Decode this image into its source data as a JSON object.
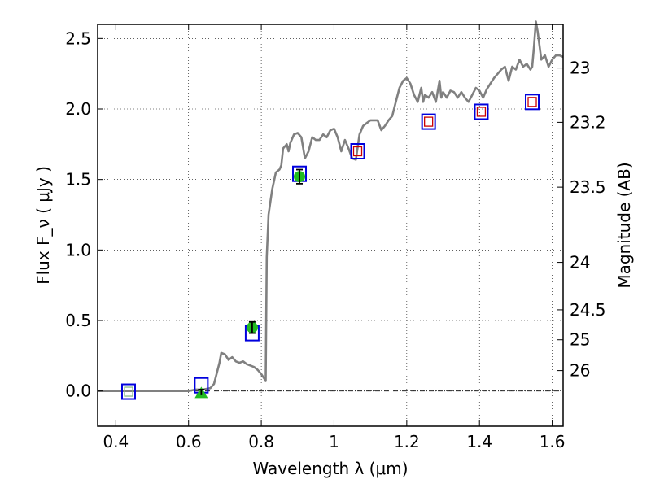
{
  "chart_data": {
    "type": "scatter",
    "xlabel": "Wavelength  λ (μm)",
    "ylabel": "Flux  F_ν  ( μJy )",
    "ylabel_right": "Magnitude (AB)",
    "xlim": [
      0.35,
      1.63
    ],
    "ylim": [
      -0.25,
      2.6
    ],
    "grid": true,
    "x_ticks": [
      0.4,
      0.6,
      0.8,
      1.0,
      1.2,
      1.4,
      1.6
    ],
    "x_tick_labels": [
      "0.4",
      "0.6",
      "0.8",
      "1",
      "1.2",
      "1.4",
      "1.6"
    ],
    "y_ticks": [
      0.0,
      0.5,
      1.0,
      1.5,
      2.0,
      2.5
    ],
    "y_tick_labels": [
      "0.0",
      "0.5",
      "1.0",
      "1.5",
      "2.0",
      "2.5"
    ],
    "mag_ticks": [
      {
        "value": 23,
        "label": "23"
      },
      {
        "value": 23.2,
        "label": "23.2"
      },
      {
        "value": 23.5,
        "label": "23.5"
      },
      {
        "value": 24,
        "label": "24"
      },
      {
        "value": 24.5,
        "label": "24.5"
      },
      {
        "value": 25,
        "label": "25"
      },
      {
        "value": 26,
        "label": "26"
      }
    ],
    "series": [
      {
        "style": "model-spectrum-line",
        "color": "#808080",
        "points": [
          [
            0.35,
            0.0
          ],
          [
            0.6,
            0.0
          ],
          [
            0.62,
            0.01
          ],
          [
            0.64,
            0.01
          ],
          [
            0.66,
            0.02
          ],
          [
            0.67,
            0.05
          ],
          [
            0.685,
            0.2
          ],
          [
            0.69,
            0.27
          ],
          [
            0.7,
            0.26
          ],
          [
            0.71,
            0.22
          ],
          [
            0.72,
            0.24
          ],
          [
            0.73,
            0.21
          ],
          [
            0.74,
            0.2
          ],
          [
            0.75,
            0.21
          ],
          [
            0.76,
            0.19
          ],
          [
            0.78,
            0.17
          ],
          [
            0.79,
            0.15
          ],
          [
            0.8,
            0.12
          ],
          [
            0.81,
            0.08
          ],
          [
            0.812,
            0.07
          ],
          [
            0.815,
            0.95
          ],
          [
            0.82,
            1.25
          ],
          [
            0.83,
            1.43
          ],
          [
            0.84,
            1.55
          ],
          [
            0.85,
            1.57
          ],
          [
            0.855,
            1.6
          ],
          [
            0.86,
            1.72
          ],
          [
            0.87,
            1.75
          ],
          [
            0.875,
            1.7
          ],
          [
            0.88,
            1.76
          ],
          [
            0.89,
            1.82
          ],
          [
            0.9,
            1.83
          ],
          [
            0.91,
            1.8
          ],
          [
            0.92,
            1.65
          ],
          [
            0.93,
            1.7
          ],
          [
            0.94,
            1.8
          ],
          [
            0.95,
            1.78
          ],
          [
            0.96,
            1.78
          ],
          [
            0.97,
            1.82
          ],
          [
            0.98,
            1.8
          ],
          [
            0.99,
            1.85
          ],
          [
            1.0,
            1.86
          ],
          [
            1.01,
            1.8
          ],
          [
            1.02,
            1.7
          ],
          [
            1.03,
            1.78
          ],
          [
            1.04,
            1.72
          ],
          [
            1.05,
            1.65
          ],
          [
            1.06,
            1.64
          ],
          [
            1.07,
            1.82
          ],
          [
            1.08,
            1.88
          ],
          [
            1.09,
            1.9
          ],
          [
            1.1,
            1.92
          ],
          [
            1.12,
            1.92
          ],
          [
            1.13,
            1.85
          ],
          [
            1.14,
            1.88
          ],
          [
            1.15,
            1.92
          ],
          [
            1.16,
            1.95
          ],
          [
            1.17,
            2.05
          ],
          [
            1.18,
            2.15
          ],
          [
            1.19,
            2.2
          ],
          [
            1.2,
            2.22
          ],
          [
            1.21,
            2.18
          ],
          [
            1.22,
            2.1
          ],
          [
            1.23,
            2.05
          ],
          [
            1.24,
            2.15
          ],
          [
            1.245,
            2.05
          ],
          [
            1.25,
            2.1
          ],
          [
            1.26,
            2.08
          ],
          [
            1.27,
            2.12
          ],
          [
            1.28,
            2.05
          ],
          [
            1.29,
            2.2
          ],
          [
            1.295,
            2.08
          ],
          [
            1.3,
            2.12
          ],
          [
            1.31,
            2.08
          ],
          [
            1.32,
            2.13
          ],
          [
            1.33,
            2.12
          ],
          [
            1.34,
            2.08
          ],
          [
            1.35,
            2.12
          ],
          [
            1.36,
            2.08
          ],
          [
            1.37,
            2.05
          ],
          [
            1.38,
            2.1
          ],
          [
            1.39,
            2.15
          ],
          [
            1.4,
            2.13
          ],
          [
            1.41,
            2.08
          ],
          [
            1.42,
            2.14
          ],
          [
            1.43,
            2.18
          ],
          [
            1.44,
            2.22
          ],
          [
            1.45,
            2.25
          ],
          [
            1.46,
            2.28
          ],
          [
            1.47,
            2.3
          ],
          [
            1.48,
            2.2
          ],
          [
            1.49,
            2.3
          ],
          [
            1.5,
            2.28
          ],
          [
            1.51,
            2.35
          ],
          [
            1.52,
            2.3
          ],
          [
            1.53,
            2.32
          ],
          [
            1.54,
            2.28
          ],
          [
            1.545,
            2.3
          ],
          [
            1.55,
            2.45
          ],
          [
            1.555,
            2.62
          ],
          [
            1.56,
            2.55
          ],
          [
            1.57,
            2.35
          ],
          [
            1.58,
            2.38
          ],
          [
            1.59,
            2.3
          ],
          [
            1.6,
            2.35
          ],
          [
            1.61,
            2.38
          ],
          [
            1.62,
            2.38
          ],
          [
            1.63,
            2.37
          ]
        ]
      },
      {
        "style": "model-photometry-squares",
        "color": "#0000dd",
        "x": [
          0.435,
          0.635,
          0.775,
          0.905,
          1.065,
          1.26,
          1.405,
          1.545
        ],
        "y": [
          -0.005,
          0.04,
          0.41,
          1.54,
          1.7,
          1.91,
          1.98,
          2.05
        ]
      },
      {
        "style": "upper-limit-squares",
        "color": "#cc0000",
        "x": [
          1.065,
          1.26,
          1.405,
          1.545
        ],
        "y": [
          1.7,
          1.91,
          1.98,
          2.05
        ]
      },
      {
        "style": "nondetection-square",
        "color": "#88bb88",
        "x": [
          0.435
        ],
        "y": [
          -0.005
        ]
      },
      {
        "style": "observed-detections",
        "color": "#22bb22",
        "x": [
          0.775,
          0.905
        ],
        "y": [
          0.45,
          1.52
        ],
        "yerr": [
          0.04,
          0.05
        ]
      },
      {
        "style": "observed-triangle",
        "color": "#22bb22",
        "x": [
          0.635
        ],
        "y": [
          -0.01
        ],
        "yerr": [
          0.02
        ]
      }
    ]
  }
}
